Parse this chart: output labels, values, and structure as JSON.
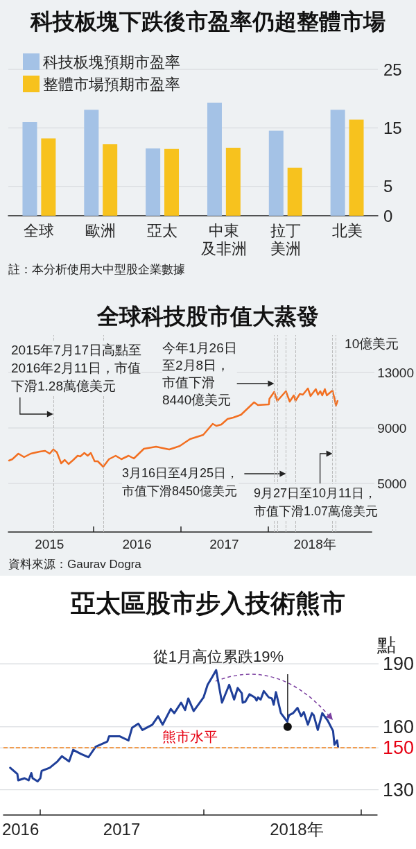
{
  "chart_data": [
    {
      "type": "bar",
      "title": "科技板塊下跌後市盈率仍超整體市場",
      "categories": [
        "全球",
        "歐洲",
        "亞太",
        "中東及非洲",
        "拉丁美洲",
        "北美"
      ],
      "series": [
        {
          "name": "科技板塊預期市盈率",
          "color": "#a4c2e6",
          "values": [
            16.0,
            18.1,
            11.5,
            19.3,
            14.5,
            18.1
          ]
        },
        {
          "name": "整體市場預期市盈率",
          "color": "#f7c21e",
          "values": [
            13.2,
            12.2,
            11.4,
            11.6,
            8.2,
            16.4
          ]
        }
      ],
      "ylim": [
        0,
        25
      ],
      "yticks": [
        0,
        5,
        15,
        25
      ],
      "grid": "y",
      "legend": "top left",
      "annotations": [
        "註：本分析使用大中型股企業數據"
      ]
    },
    {
      "type": "line",
      "title": "全球科技股市值大蒸發",
      "ylabel": "10億美元",
      "color": "#f26f21",
      "marker": "none",
      "line_style": "solid",
      "x": [
        "2015-01-13",
        "2015-01-27",
        "2015-02-21",
        "2015-03-17",
        "2015-04-14",
        "2015-05-22",
        "2015-06-13",
        "2015-07-02",
        "2015-07-17",
        "2015-08-01",
        "2015-08-19",
        "2015-09-03",
        "2015-09-19",
        "2015-10-09",
        "2015-10-27",
        "2015-11-07",
        "2015-11-24",
        "2015-12-08",
        "2015-12-21",
        "2016-01-06",
        "2016-01-19",
        "2016-02-11",
        "2016-03-06",
        "2016-04-03",
        "2016-04-27",
        "2016-05-27",
        "2016-06-18",
        "2016-07-30",
        "2016-09-19",
        "2016-11-13",
        "2016-12-27",
        "2017-02-08",
        "2017-04-04",
        "2017-05-14",
        "2017-05-29",
        "2017-06-19",
        "2017-07-15",
        "2017-08-08",
        "2017-09-09",
        "2017-11-03",
        "2017-11-19",
        "2018-01-04",
        "2018-01-06",
        "2018-01-26",
        "2018-02-08",
        "2018-03-16",
        "2018-04-01",
        "2018-04-18",
        "2018-04-25",
        "2018-05-13",
        "2018-05-26",
        "2018-06-16",
        "2018-06-27",
        "2018-07-19",
        "2018-07-28",
        "2018-08-07",
        "2018-08-15",
        "2018-08-26",
        "2018-09-03",
        "2018-09-27",
        "2018-10-08",
        "2018-10-11",
        "2018-10-18"
      ],
      "values": [
        6650,
        6750,
        7150,
        6900,
        7150,
        7300,
        7350,
        7150,
        7450,
        7250,
        6450,
        6700,
        6400,
        6700,
        7000,
        6950,
        7200,
        7000,
        7200,
        6600,
        6600,
        6200,
        6750,
        7000,
        6750,
        7000,
        6800,
        7500,
        7650,
        7450,
        7700,
        8200,
        8500,
        9300,
        9150,
        9250,
        9650,
        9750,
        9950,
        10850,
        10650,
        10700,
        11100,
        11600,
        10950,
        11650,
        10900,
        11350,
        10950,
        11450,
        11400,
        11850,
        11300,
        11800,
        11400,
        11650,
        11350,
        11800,
        11350,
        11700,
        10900,
        10600,
        10950
      ],
      "xlim": [
        "2015-01-10",
        "2019-03-10"
      ],
      "xticks": [
        {
          "value": "2015-07-01",
          "label": "2015"
        },
        {
          "value": "2016-01-01",
          "label": null
        },
        {
          "value": "2016-07-01",
          "label": "2016"
        },
        {
          "value": "2017-01-01",
          "label": null
        },
        {
          "value": "2017-07-01",
          "label": "2017"
        },
        {
          "value": "2018-01-01",
          "label": null
        },
        {
          "value": "2018-07-15",
          "label": "2018年"
        }
      ],
      "ylim": [
        1500,
        15700
      ],
      "yticks": [
        5000,
        9000,
        13000
      ],
      "grid": "y",
      "ref_lines": [
        {
          "axis": "x",
          "value": "2015-07-17",
          "color": "#bbbbbb",
          "line_style": "dashed"
        },
        {
          "axis": "x",
          "value": "2016-02-11",
          "color": "#bbbbbb",
          "line_style": "dashed"
        },
        {
          "axis": "x",
          "value": "2018-01-26",
          "color": "#bbbbbb",
          "line_style": "dashed"
        },
        {
          "axis": "x",
          "value": "2018-02-08",
          "color": "#bbbbbb",
          "line_style": "dashed"
        },
        {
          "axis": "x",
          "value": "2018-03-16",
          "color": "#bbbbbb",
          "line_style": "dashed"
        },
        {
          "axis": "x",
          "value": "2018-04-25",
          "color": "#bbbbbb",
          "line_style": "dashed"
        },
        {
          "axis": "x",
          "value": "2018-09-27",
          "color": "#bbbbbb",
          "line_style": "dashed"
        },
        {
          "axis": "x",
          "value": "2018-10-11",
          "color": "#bbbbbb",
          "line_style": "dashed"
        }
      ],
      "annotations": [
        {
          "text": "2015年7月17日高點至2016年2月11日，市值下滑1.28萬億美元",
          "x": "2015-07-17",
          "y": 10000
        },
        {
          "text": "今年1月26日至2月8日，市值下滑8440億美元",
          "x": "2018-01-26",
          "y": 12200
        },
        {
          "text": "3月16日至4月25日，市值下滑8450億美元",
          "x": "2018-03-16",
          "y": 5700
        },
        {
          "text": "9月27日至10月11日，市值下滑1.07萬億美元",
          "x": "2018-09-27",
          "y": 7150
        },
        "資料來源：Gaurav Dogra"
      ]
    },
    {
      "type": "line",
      "title": "亞太區股市步入技術熊市",
      "ylabel": "點",
      "color": "#1f3f99",
      "marker": "none",
      "line_style": "solid",
      "x": [
        "2016-10-27",
        "2016-11-12",
        "2016-11-14",
        "2016-11-28",
        "2016-12-07",
        "2016-12-13",
        "2016-12-16",
        "2016-12-27",
        "2017-01-02",
        "2017-01-05",
        "2017-01-23",
        "2017-02-09",
        "2017-02-19",
        "2017-03-07",
        "2017-03-16",
        "2017-04-03",
        "2017-04-19",
        "2017-05-05",
        "2017-05-31",
        "2017-06-04",
        "2017-06-27",
        "2017-07-17",
        "2017-07-25",
        "2017-08-08",
        "2017-08-17",
        "2017-09-08",
        "2017-09-21",
        "2017-10-01",
        "2017-10-19",
        "2017-10-27",
        "2017-11-11",
        "2017-11-20",
        "2017-11-27",
        "2017-12-09",
        "2017-12-31",
        "2018-01-09",
        "2018-01-20",
        "2018-01-28",
        "2018-02-10",
        "2018-02-26",
        "2018-03-09",
        "2018-03-17",
        "2018-03-26",
        "2018-03-28",
        "2018-04-03",
        "2018-04-12",
        "2018-04-24",
        "2018-04-28",
        "2018-05-01",
        "2018-05-07",
        "2018-05-14",
        "2018-05-25",
        "2018-06-01",
        "2018-06-05",
        "2018-06-10",
        "2018-06-21",
        "2018-07-05",
        "2018-07-09",
        "2018-07-18",
        "2018-07-28",
        "2018-08-05",
        "2018-08-11",
        "2018-08-20",
        "2018-08-29",
        "2018-09-02",
        "2018-09-11",
        "2018-09-21",
        "2018-10-03",
        "2018-10-15",
        "2018-10-18",
        "2018-10-24",
        "2018-10-26"
      ],
      "values": [
        140.5,
        137.5,
        134.5,
        135.5,
        134.5,
        138,
        135.5,
        134,
        135.5,
        139,
        140.5,
        143.5,
        146,
        143.5,
        149,
        147,
        145.5,
        150.5,
        153,
        155.5,
        155.5,
        153.5,
        159.5,
        161.5,
        158.5,
        161,
        165,
        161,
        168.5,
        166.5,
        171.5,
        168,
        173.5,
        167.5,
        174,
        180,
        184,
        187,
        171.5,
        180,
        173,
        178.5,
        176,
        171.5,
        172,
        175.5,
        174,
        172.5,
        174,
        173,
        177,
        174,
        173.5,
        170.5,
        176.5,
        166.5,
        162.5,
        165.5,
        166.5,
        169,
        165,
        167,
        161,
        166.5,
        165.5,
        158.5,
        166.5,
        163,
        158,
        151.5,
        153.5,
        150.5
      ],
      "xlim": [
        "2016-10-12",
        "2019-01-21"
      ],
      "xticks": [
        {
          "value": "2016-11-19",
          "label": "2016"
        },
        {
          "value": "2017-01-01",
          "label": null
        },
        {
          "value": "2017-07-02",
          "label": "2017"
        },
        {
          "value": "2018-01-01",
          "label": null
        },
        {
          "value": "2018-07-26",
          "label": "2018年"
        },
        {
          "value": "2018-12-16",
          "label": null
        }
      ],
      "ylim": [
        118,
        190
      ],
      "yticks": [
        130,
        150,
        160,
        190
      ],
      "grid": "y",
      "ref_lines": [
        {
          "axis": "y",
          "value": 150,
          "label": "熊市水平",
          "color": "#f0821e",
          "line_style": "dashed"
        }
      ],
      "annotations": [
        {
          "text": "從1月高位累跌19%",
          "x": "2018-07-06",
          "y": 160
        }
      ]
    }
  ]
}
